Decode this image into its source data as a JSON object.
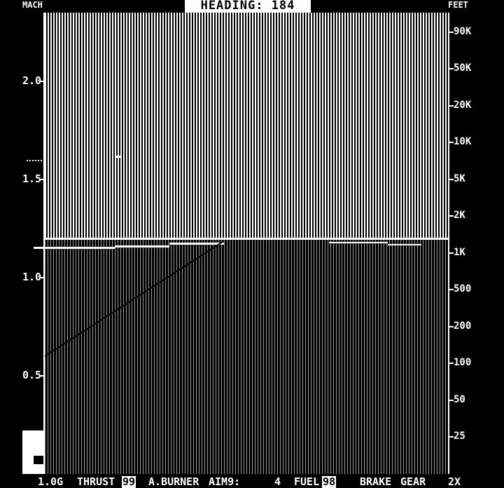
{
  "hud": {
    "title": "HEADING: 184",
    "mach_label": "MACH",
    "feet_label": "FEET"
  },
  "mach_scale": [
    "2.0",
    "1.5",
    "1.0",
    "0.5"
  ],
  "altitude_scale": [
    "90K",
    "50K",
    "20K",
    "10K",
    "5K",
    "2K",
    "1K",
    "500",
    "200",
    "100",
    "50",
    "25"
  ],
  "status_bar": {
    "g_load": "1.0G",
    "thrust_label": "THRUST",
    "thrust_value": "99",
    "afterburner_label": "A.BURNER",
    "aim9_label": "AIM9:",
    "aim9_value": "4",
    "fuel_label": "FUEL",
    "fuel_value": "98",
    "brake_label": "BRAKE",
    "gear_label": "GEAR",
    "zoom_label": "2X"
  },
  "colors": {
    "background": "#000000",
    "foreground": "#ffffff",
    "ground_hatch": "#9a9a9a"
  }
}
